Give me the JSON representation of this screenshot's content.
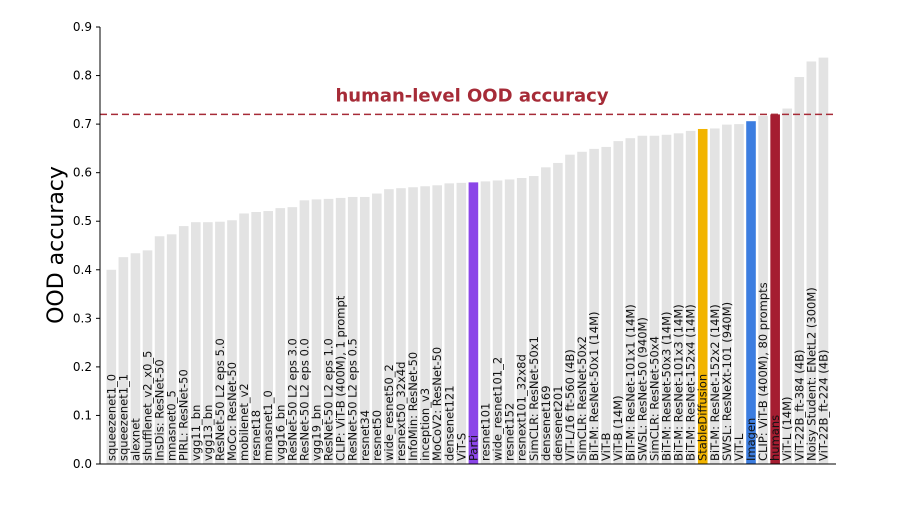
{
  "chart_data": {
    "type": "bar",
    "title": "",
    "xlabel": "",
    "ylabel": "OOD accuracy",
    "ylim": [
      0.0,
      0.9
    ],
    "yticks": [
      "0.0",
      "0.1",
      "0.2",
      "0.3",
      "0.4",
      "0.5",
      "0.6",
      "0.7",
      "0.8",
      "0.9"
    ],
    "grid": false,
    "default_color": "#e3e3e3",
    "reference_line": {
      "label": "human-level OOD accuracy",
      "value": 0.72,
      "color": "#a62b37"
    },
    "categories": [
      "squeezenet1_0",
      "squeezenet1_1",
      "alexnet",
      "shufflenet_v2_x0_5",
      "InsDis: ResNet-50",
      "mnasnet0_5",
      "PIRL: ResNet-50",
      "vgg11_bn",
      "vgg13_bn",
      "ResNet-50 L2 eps 5.0",
      "MoCo: ResNet-50",
      "mobilenet_v2",
      "resnet18",
      "mnasnet1_0",
      "vgg16_bn",
      "ResNet-50 L2 eps 3.0",
      "ResNet-50 L2 eps 0.0",
      "vgg19_bn",
      "ResNet-50 L2 eps 1.0",
      "CLIP: ViT-B (400M), 1 prompt",
      "ResNet-50 L2 eps 0.5",
      "resnet34",
      "resnet50",
      "wide_resnet50_2",
      "resnext50_32x4d",
      "InfoMin: ResNet-50",
      "inception_v3",
      "MoCoV2: ResNet-50",
      "densenet121",
      "ViT-S",
      "Parti",
      "resnet101",
      "wide_resnet101_2",
      "resnet152",
      "resnext101_32x8d",
      "SimCLR: ResNet-50x1",
      "densenet169",
      "densenet201",
      "ViT-L/16 ft-560 (4B)",
      "SimCLR: ResNet-50x2",
      "BiT-M: ResNet-50x1 (14M)",
      "ViT-B",
      "ViT-B (14M)",
      "BiT-M: ResNet-101x1 (14M)",
      "SWSL: ResNet-50 (940M)",
      "SimCLR: ResNet-50x4",
      "BiT-M: ResNet-50x3 (14M)",
      "BiT-M: ResNet-101x3 (14M)",
      "BiT-M: ResNet-152x4 (14M)",
      "StableDiffusion",
      "BiT-M: ResNet-152x2 (14M)",
      "SWSL: ResNeXt-101 (940M)",
      "ViT-L",
      "Imagen",
      "CLIP: ViT-B (400M), 80 prompts",
      "humans",
      "ViT-L (14M)",
      "ViT-22B_ft-384 (4B)",
      "Noisy Student: ENetL2 (300M)",
      "ViT-22B_ft-224 (4B)"
    ],
    "values": [
      0.4,
      0.426,
      0.434,
      0.44,
      0.469,
      0.473,
      0.49,
      0.498,
      0.498,
      0.499,
      0.502,
      0.516,
      0.519,
      0.521,
      0.527,
      0.529,
      0.543,
      0.545,
      0.546,
      0.548,
      0.55,
      0.55,
      0.557,
      0.566,
      0.568,
      0.57,
      0.572,
      0.574,
      0.578,
      0.579,
      0.58,
      0.582,
      0.584,
      0.586,
      0.589,
      0.593,
      0.611,
      0.62,
      0.637,
      0.643,
      0.649,
      0.653,
      0.665,
      0.671,
      0.676,
      0.676,
      0.678,
      0.681,
      0.686,
      0.69,
      0.691,
      0.699,
      0.7,
      0.706,
      0.717,
      0.72,
      0.732,
      0.797,
      0.829,
      0.837
    ],
    "highlights": [
      {
        "category": "Parti",
        "color": "#8b46e8"
      },
      {
        "category": "StableDiffusion",
        "color": "#f2b400"
      },
      {
        "category": "Imagen",
        "color": "#3c7de0"
      },
      {
        "category": "humans",
        "color": "#a51d31"
      }
    ]
  }
}
